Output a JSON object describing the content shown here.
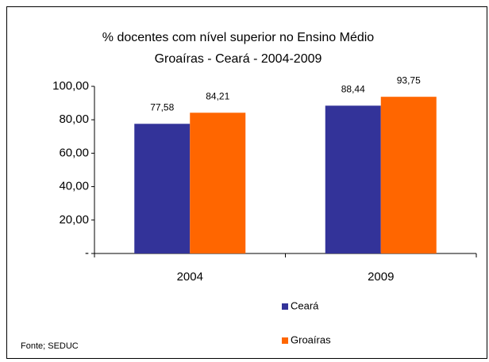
{
  "chart_data": {
    "type": "bar",
    "title": "% docentes com nível superior no Ensino Médio",
    "subtitle": "Groaíras -  Ceará - 2004-2009",
    "categories": [
      "2004",
      "2009"
    ],
    "series": [
      {
        "name": "Ceará",
        "color": "#333399",
        "values": [
          77.58,
          88.44
        ],
        "value_labels": [
          "77,58",
          "88,44"
        ]
      },
      {
        "name": "Groaíras",
        "color": "#ff6600",
        "values": [
          84.21,
          93.75
        ],
        "value_labels": [
          "84,21",
          "93,75"
        ]
      }
    ],
    "ylim": [
      0,
      100
    ],
    "yticks": [
      {
        "value": 0,
        "label": "-"
      },
      {
        "value": 20,
        "label": "20,00"
      },
      {
        "value": 40,
        "label": "40,00"
      },
      {
        "value": 60,
        "label": "60,00"
      },
      {
        "value": 80,
        "label": "80,00"
      },
      {
        "value": 100,
        "label": "100,00"
      }
    ],
    "annotation": "Fonte; SEDUC"
  }
}
